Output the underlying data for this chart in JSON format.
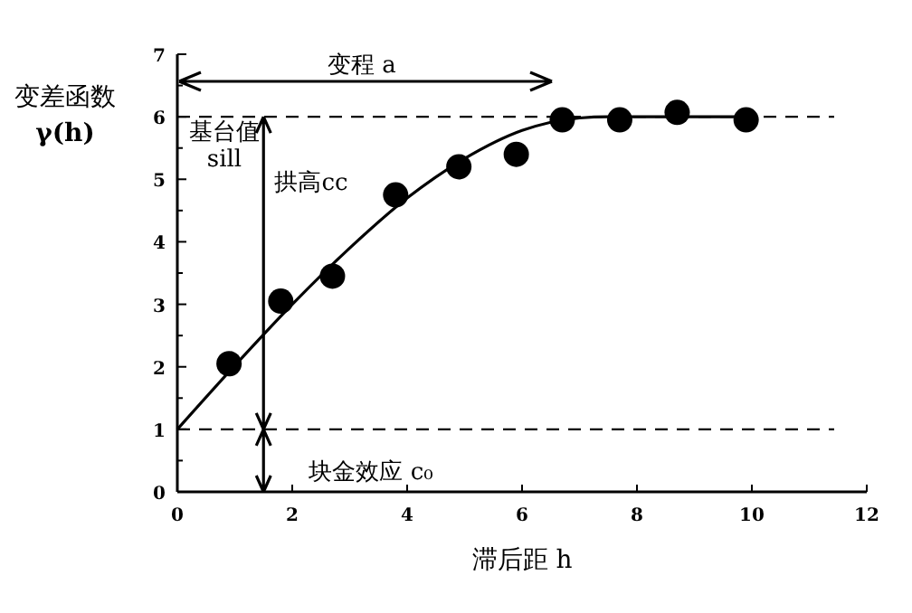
{
  "chart_data": {
    "type": "scatter",
    "ylabel": "变差函数 γ(h)",
    "xlabel": "滞后距 h",
    "xlim": [
      0,
      12
    ],
    "xticks": [
      0,
      2,
      4,
      6,
      8,
      10,
      12
    ],
    "ylim": [
      0,
      7
    ],
    "yticks": [
      0,
      {
        "value": 0.5,
        "label": null
      },
      1,
      {
        "value": 1.5,
        "label": null
      },
      2,
      {
        "value": 2.5,
        "label": null
      },
      3,
      {
        "value": 3.5,
        "label": null
      },
      4,
      {
        "value": 4.5,
        "label": null
      },
      5,
      {
        "value": 5.5,
        "label": null
      },
      6,
      {
        "value": 6.5,
        "label": null
      },
      7
    ],
    "grid": false,
    "series": [
      {
        "color": "#000000",
        "marker": "circle",
        "x": [
          0.9,
          1.8,
          2.7,
          3.8,
          4.9,
          5.9,
          6.7,
          7.7,
          8.7,
          9.9
        ],
        "values": [
          2.05,
          3.05,
          3.45,
          4.75,
          5.2,
          5.4,
          5.95,
          5.95,
          6.07,
          5.95
        ]
      },
      {
        "type": "line",
        "color": "#000000",
        "marker": "none",
        "line_style": "solid",
        "x": [
          0,
          1,
          2,
          3,
          4,
          5,
          6,
          7,
          7.5,
          8,
          9,
          10
        ],
        "values": [
          1,
          2.02,
          3,
          3.9,
          4.7,
          5.33,
          5.78,
          5.98,
          6,
          6,
          6,
          6
        ]
      }
    ],
    "ref_lines": [
      {
        "axis": "y",
        "value": 6,
        "line_style": "dashed",
        "color": "#000000"
      },
      {
        "axis": "y",
        "value": 1,
        "line_style": "dashed",
        "color": "#000000"
      }
    ],
    "annotations": [
      "变程 a",
      "基台值 sill",
      "拱高cc",
      "块金效应 c₀"
    ]
  }
}
